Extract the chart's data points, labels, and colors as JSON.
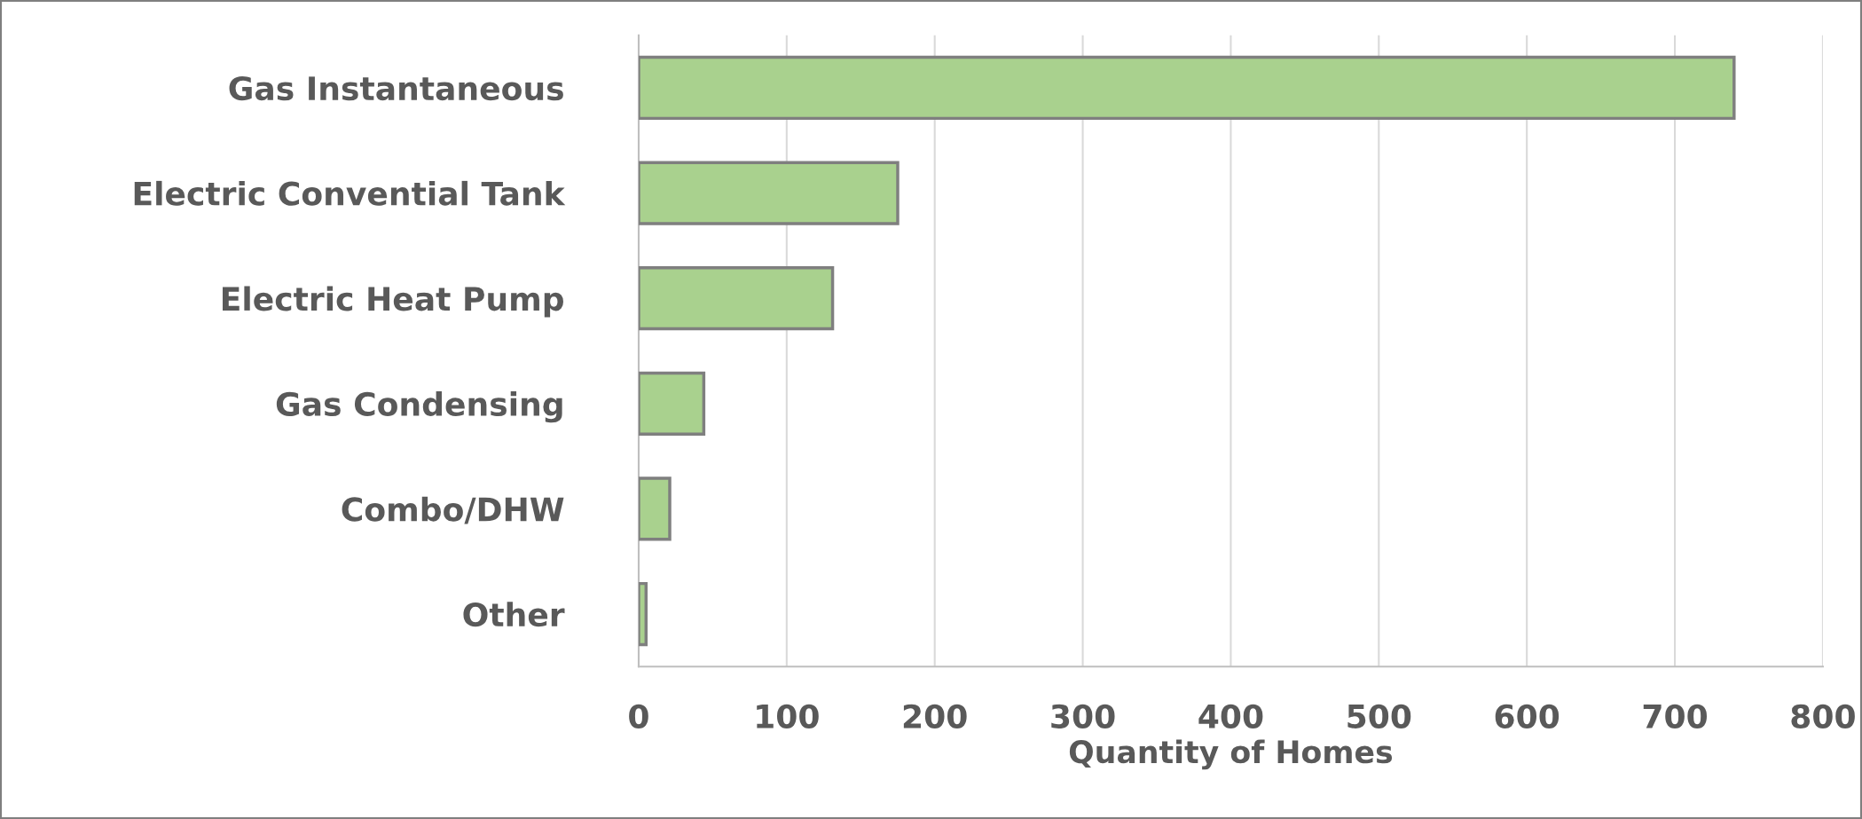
{
  "chart_data": {
    "type": "bar",
    "orientation": "horizontal",
    "xlabel": "Quantity of Homes",
    "categories": [
      "Gas Instantaneous",
      "Electric Convential Tank",
      "Electric Heat Pump",
      "Gas Condensing",
      "Combo/DHW",
      "Other"
    ],
    "values": [
      740,
      175,
      131,
      44,
      21,
      5
    ],
    "color": "#a9d18e",
    "xlim": [
      0,
      800
    ],
    "xticks": [
      0,
      100,
      200,
      300,
      400,
      500,
      600,
      700,
      800
    ],
    "grid": "x",
    "legend": false
  }
}
